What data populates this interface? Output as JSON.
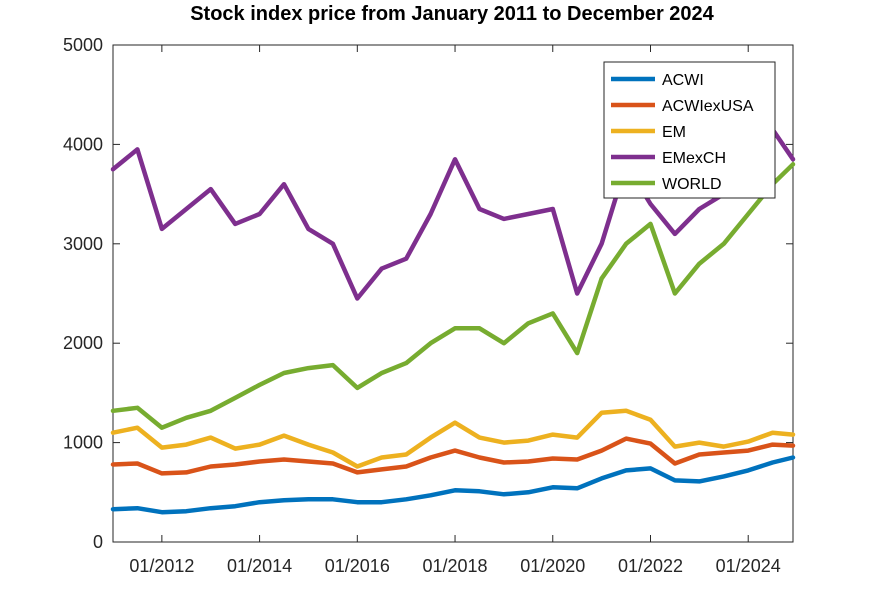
{
  "chart_data": {
    "type": "line",
    "title": "Stock index price from January 2011 to December 2024",
    "xlabel": "",
    "ylabel": "",
    "xlim": [
      "01/2011",
      "12/2024"
    ],
    "ylim": [
      0,
      5000
    ],
    "yticks": [
      0,
      1000,
      2000,
      3000,
      4000,
      5000
    ],
    "xtick_labels": [
      "01/2012",
      "01/2014",
      "01/2016",
      "01/2018",
      "01/2020",
      "01/2022",
      "01/2024"
    ],
    "grid": false,
    "legend_position": "top-right",
    "x": [
      "01/2011",
      "07/2011",
      "01/2012",
      "07/2012",
      "01/2013",
      "07/2013",
      "01/2014",
      "07/2014",
      "01/2015",
      "07/2015",
      "01/2016",
      "07/2016",
      "01/2017",
      "07/2017",
      "01/2018",
      "07/2018",
      "01/2019",
      "07/2019",
      "01/2020",
      "07/2020",
      "01/2021",
      "07/2021",
      "01/2022",
      "07/2022",
      "01/2023",
      "07/2023",
      "01/2024",
      "07/2024",
      "12/2024"
    ],
    "series": [
      {
        "name": "ACWI",
        "color": "#0072BD",
        "values": [
          330,
          340,
          300,
          310,
          340,
          360,
          400,
          420,
          430,
          430,
          400,
          400,
          430,
          470,
          520,
          510,
          480,
          500,
          550,
          540,
          640,
          720,
          740,
          620,
          610,
          660,
          720,
          800,
          850
        ]
      },
      {
        "name": "ACWIexUSA",
        "color": "#D95319",
        "values": [
          780,
          790,
          690,
          700,
          760,
          780,
          810,
          830,
          810,
          790,
          700,
          730,
          760,
          850,
          920,
          850,
          800,
          810,
          840,
          830,
          920,
          1040,
          990,
          790,
          880,
          900,
          920,
          980,
          970
        ]
      },
      {
        "name": "EM",
        "color": "#EDB120",
        "values": [
          1100,
          1150,
          950,
          980,
          1050,
          940,
          980,
          1070,
          980,
          900,
          760,
          850,
          880,
          1050,
          1200,
          1050,
          1000,
          1020,
          1080,
          1050,
          1300,
          1320,
          1230,
          960,
          1000,
          960,
          1010,
          1100,
          1080
        ]
      },
      {
        "name": "EMexCH",
        "color": "#7E2F8E",
        "values": [
          3750,
          3950,
          3150,
          3350,
          3550,
          3200,
          3300,
          3600,
          3150,
          3000,
          2450,
          2750,
          2850,
          3300,
          3850,
          3350,
          3250,
          3300,
          3350,
          2500,
          3000,
          3800,
          3400,
          3100,
          3350,
          3500,
          3600,
          4150,
          3850
        ]
      },
      {
        "name": "WORLD",
        "color": "#77AC30",
        "values": [
          1320,
          1350,
          1150,
          1250,
          1320,
          1450,
          1580,
          1700,
          1750,
          1780,
          1550,
          1700,
          1800,
          2000,
          2150,
          2150,
          2000,
          2200,
          2300,
          1900,
          2650,
          3000,
          3200,
          2500,
          2800,
          3000,
          3300,
          3600,
          3800
        ]
      }
    ]
  }
}
